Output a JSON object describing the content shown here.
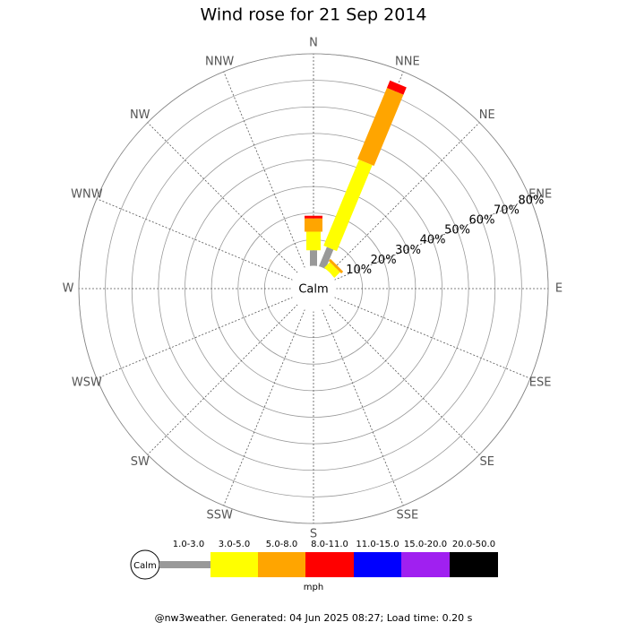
{
  "chart_data": {
    "type": "windrose",
    "title": "Wind rose for 21 Sep 2014",
    "directions": [
      "N",
      "NNE",
      "NE",
      "ENE",
      "E",
      "ESE",
      "SE",
      "SSE",
      "S",
      "SSW",
      "SW",
      "WSW",
      "W",
      "WNW",
      "NW",
      "NNW"
    ],
    "calm_label": "Calm",
    "rlim": [
      0,
      80
    ],
    "rticks": [
      {
        "value": 10,
        "label": "10%"
      },
      {
        "value": 20,
        "label": "20%"
      },
      {
        "value": 30,
        "label": "30%"
      },
      {
        "value": 40,
        "label": "40%"
      },
      {
        "value": 50,
        "label": "50%"
      },
      {
        "value": 60,
        "label": "60%"
      },
      {
        "value": 70,
        "label": "70%"
      },
      {
        "value": 80,
        "label": "80%"
      }
    ],
    "series": [
      {
        "name": "1.0-3.0",
        "color": "#999999",
        "values": [
          6,
          8,
          0,
          0,
          0,
          0,
          0,
          0,
          0,
          0,
          0,
          0,
          0,
          0,
          0,
          0
        ]
      },
      {
        "name": "3.0-5.0",
        "color": "#ffff00",
        "values": [
          7,
          35,
          3,
          0,
          0,
          0,
          0,
          0,
          0,
          0,
          0,
          0,
          0,
          0,
          0,
          0
        ]
      },
      {
        "name": "5.0-8.0",
        "color": "#ffa500",
        "values": [
          5,
          29,
          1,
          0,
          0,
          0,
          0,
          0,
          0,
          0,
          0,
          0,
          0,
          0,
          0,
          0
        ]
      },
      {
        "name": "8.0-11.0",
        "color": "#ff0000",
        "values": [
          1,
          3,
          0,
          0,
          0,
          0,
          0,
          0,
          0,
          0,
          0,
          0,
          0,
          0,
          0,
          0
        ]
      },
      {
        "name": "11.0-15.0",
        "color": "#0000ff",
        "values": [
          0,
          0,
          0,
          0,
          0,
          0,
          0,
          0,
          0,
          0,
          0,
          0,
          0,
          0,
          0,
          0
        ]
      },
      {
        "name": "15.0-20.0",
        "color": "#a020f0",
        "values": [
          0,
          0,
          0,
          0,
          0,
          0,
          0,
          0,
          0,
          0,
          0,
          0,
          0,
          0,
          0,
          0
        ]
      },
      {
        "name": "20.0-50.0",
        "color": "#000000",
        "values": [
          0,
          0,
          0,
          0,
          0,
          0,
          0,
          0,
          0,
          0,
          0,
          0,
          0,
          0,
          0,
          0
        ]
      }
    ],
    "legend_unit": "mph",
    "footer": "@nw3weather. Generated: 04 Jun 2025 08:27; Load time: 0.20 s"
  }
}
